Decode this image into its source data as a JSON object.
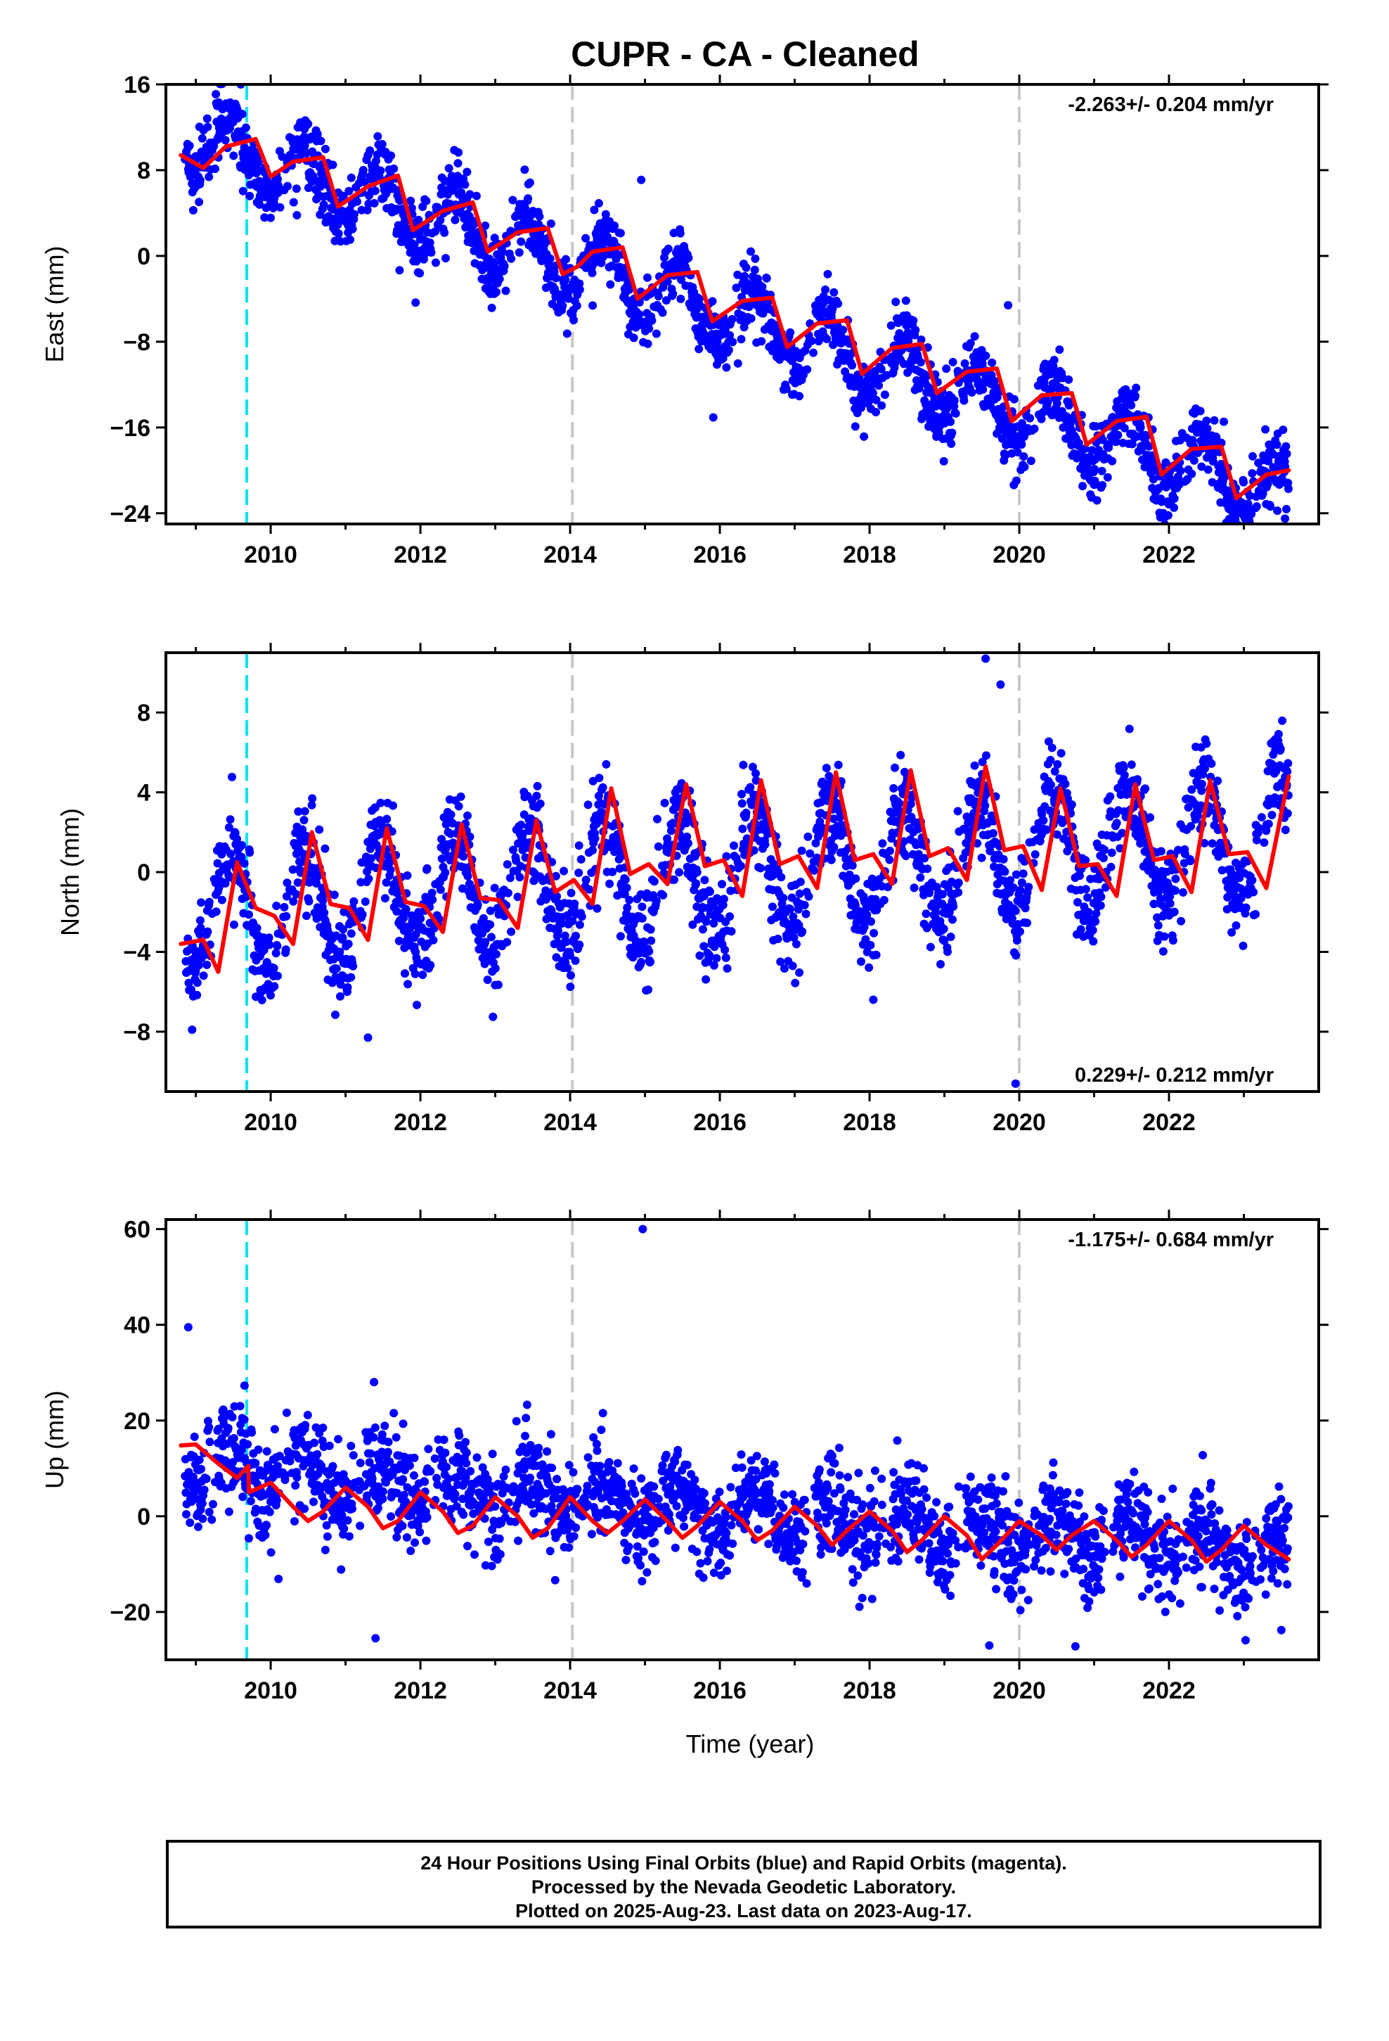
{
  "title": "CUPR  - CA - Cleaned",
  "colors": {
    "points": "#0000ff",
    "fit": "#ff0000",
    "equipment_change": "#00e5ee",
    "other_event": "#c8c8c8",
    "frame": "#000000"
  },
  "xaxis": {
    "label": "Time (year)",
    "range": [
      2008.6,
      2024.0
    ],
    "ticks": [
      2010,
      2012,
      2014,
      2016,
      2018,
      2020,
      2022
    ],
    "tick_labels": [
      "2010",
      "2012",
      "2014",
      "2016",
      "2018",
      "2020",
      "2022"
    ]
  },
  "event_lines": [
    {
      "year": 2009.68,
      "color": "#00e5ee"
    },
    {
      "year": 2014.03,
      "color": "#c8c8c8"
    },
    {
      "year": 2020.0,
      "color": "#c8c8c8"
    }
  ],
  "chart_data": [
    {
      "type": "scatter",
      "ylabel": "East (mm)",
      "ylim": [
        -25,
        16
      ],
      "yticks": [
        16,
        8,
        0,
        -8,
        -16,
        -24
      ],
      "ytick_labels": [
        "16",
        "8",
        "0",
        "−8",
        "−16",
        "−24"
      ],
      "rate_text": "-2.263+/- 0.204 mm/yr",
      "rate_corner": "top-right",
      "fit_x": [
        2008.8,
        2009.1,
        2009.4,
        2009.8,
        2010.0,
        2010.3,
        2010.7,
        2010.9,
        2011.3,
        2011.7,
        2011.9,
        2012.3,
        2012.7,
        2012.9,
        2013.3,
        2013.7,
        2013.9,
        2014.1,
        2014.3,
        2014.7,
        2014.9,
        2015.3,
        2015.7,
        2015.9,
        2016.3,
        2016.7,
        2016.9,
        2017.3,
        2017.7,
        2017.9,
        2018.3,
        2018.7,
        2018.9,
        2019.3,
        2019.7,
        2019.9,
        2020.3,
        2020.7,
        2020.9,
        2021.3,
        2021.7,
        2021.9,
        2022.3,
        2022.7,
        2022.9,
        2023.3,
        2023.6
      ],
      "fit_y": [
        9.4,
        8.2,
        10.2,
        10.9,
        7.4,
        8.8,
        9.2,
        4.6,
        6.5,
        7.5,
        2.4,
        4.2,
        5.0,
        0.4,
        2.2,
        2.6,
        -1.7,
        -1.0,
        0.4,
        0.8,
        -4.0,
        -1.8,
        -1.5,
        -6.1,
        -4.2,
        -3.9,
        -8.5,
        -6.3,
        -6.0,
        -11.0,
        -8.6,
        -8.2,
        -12.8,
        -10.8,
        -10.5,
        -15.4,
        -13.0,
        -12.8,
        -17.6,
        -15.4,
        -15.0,
        -20.4,
        -18.0,
        -17.8,
        -22.6,
        -20.4,
        -20.0
      ],
      "trend_x": [
        2008.85,
        2023.6
      ],
      "trend_y": [
        11.0,
        -22.5
      ],
      "seasonal_amp": 3.0,
      "noise": 1.6,
      "outliers": [
        [
          2009.6,
          16.0
        ],
        [
          2019.85,
          -4.6
        ],
        [
          2023.55,
          -24.5
        ],
        [
          2014.95,
          7.1
        ],
        [
          2010.35,
          3.8
        ]
      ]
    },
    {
      "type": "scatter",
      "ylabel": "North (mm)",
      "ylim": [
        -11,
        11
      ],
      "yticks": [
        8,
        4,
        0,
        -4,
        -8
      ],
      "ytick_labels": [
        "8",
        "4",
        "0",
        "−4",
        "−8"
      ],
      "rate_text": "0.229+/- 0.212 mm/yr",
      "rate_corner": "bottom-right",
      "fit_x": [
        2008.8,
        2009.1,
        2009.3,
        2009.55,
        2009.8,
        2010.05,
        2010.3,
        2010.55,
        2010.8,
        2011.05,
        2011.3,
        2011.55,
        2011.8,
        2012.05,
        2012.3,
        2012.55,
        2012.8,
        2013.05,
        2013.3,
        2013.55,
        2013.8,
        2014.05,
        2014.3,
        2014.55,
        2014.8,
        2015.05,
        2015.3,
        2015.55,
        2015.8,
        2016.05,
        2016.3,
        2016.55,
        2016.8,
        2017.05,
        2017.3,
        2017.55,
        2017.8,
        2018.05,
        2018.3,
        2018.55,
        2018.8,
        2019.05,
        2019.3,
        2019.55,
        2019.8,
        2020.05,
        2020.3,
        2020.55,
        2020.8,
        2021.05,
        2021.3,
        2021.55,
        2021.8,
        2022.05,
        2022.3,
        2022.55,
        2022.8,
        2023.05,
        2023.3,
        2023.6
      ],
      "fit_y": [
        -3.6,
        -3.4,
        -5.0,
        0.5,
        -1.8,
        -2.2,
        -3.6,
        2.0,
        -1.6,
        -1.8,
        -3.4,
        2.2,
        -1.5,
        -1.7,
        -3.0,
        2.4,
        -1.3,
        -1.4,
        -2.8,
        2.6,
        -1.0,
        -0.4,
        -1.6,
        4.2,
        -0.1,
        0.4,
        -0.6,
        4.4,
        0.3,
        0.6,
        -1.2,
        4.6,
        0.4,
        0.8,
        -0.8,
        5.0,
        0.6,
        0.9,
        -0.6,
        5.1,
        0.8,
        1.2,
        -0.4,
        5.3,
        1.1,
        1.3,
        -0.9,
        4.2,
        0.3,
        0.4,
        -1.2,
        4.4,
        0.6,
        0.8,
        -1.0,
        4.6,
        0.9,
        1.0,
        -0.8,
        4.8
      ],
      "trend_x": [
        2008.85,
        2023.6
      ],
      "trend_y": [
        -2.0,
        1.8
      ],
      "seasonal_amp": 3.0,
      "noise": 1.2,
      "outliers": [
        [
          2019.55,
          10.7
        ],
        [
          2019.95,
          -10.6
        ],
        [
          2019.75,
          9.4
        ],
        [
          2018.05,
          -6.4
        ],
        [
          2011.3,
          -8.3
        ],
        [
          2008.95,
          -7.9
        ]
      ]
    },
    {
      "type": "scatter",
      "ylabel": "Up (mm)",
      "ylim": [
        -30,
        62
      ],
      "yticks": [
        60,
        40,
        20,
        0,
        -20
      ],
      "ytick_labels": [
        "60",
        "40",
        "20",
        "0",
        "−20"
      ],
      "rate_text": "-1.175+/- 0.684 mm/yr",
      "rate_corner": "top-right",
      "fit_x": [
        2008.8,
        2009.0,
        2009.3,
        2009.55,
        2009.7,
        2009.71,
        2010.0,
        2010.3,
        2010.5,
        2010.7,
        2011.0,
        2011.3,
        2011.5,
        2011.7,
        2012.0,
        2012.3,
        2012.5,
        2012.7,
        2013.0,
        2013.3,
        2013.5,
        2013.7,
        2014.0,
        2014.3,
        2014.5,
        2014.7,
        2015.0,
        2015.3,
        2015.5,
        2015.7,
        2016.0,
        2016.3,
        2016.5,
        2016.7,
        2017.0,
        2017.3,
        2017.5,
        2017.7,
        2018.0,
        2018.3,
        2018.5,
        2018.7,
        2019.0,
        2019.3,
        2019.5,
        2019.7,
        2020.0,
        2020.3,
        2020.5,
        2020.7,
        2021.0,
        2021.3,
        2021.5,
        2021.7,
        2022.0,
        2022.3,
        2022.5,
        2022.7,
        2023.0,
        2023.3,
        2023.6
      ],
      "fit_y": [
        14.8,
        15.0,
        11.0,
        8.0,
        10.5,
        5.0,
        7.0,
        2.0,
        -1.0,
        1.0,
        6.0,
        2.0,
        -2.5,
        -1.0,
        5.0,
        1.0,
        -3.5,
        -2.0,
        4.0,
        0.0,
        -4.5,
        -2.5,
        4.0,
        -1.0,
        -3.5,
        -1.0,
        3.5,
        -1.0,
        -4.5,
        -2.0,
        3.0,
        -1.0,
        -5.0,
        -3.0,
        2.0,
        -2.0,
        -6.0,
        -3.0,
        1.0,
        -3.0,
        -7.5,
        -5.0,
        0.0,
        -4.0,
        -9.0,
        -6.0,
        -1.0,
        -4.0,
        -7.0,
        -4.0,
        -1.0,
        -5.0,
        -8.5,
        -6.0,
        -1.0,
        -5.0,
        -9.5,
        -7.0,
        -2.0,
        -6.0,
        -9.0
      ],
      "trend_x": [
        2008.85,
        2023.6
      ],
      "trend_y": [
        10.0,
        -8.0
      ],
      "seasonal_amp": 4.0,
      "noise": 5.0,
      "outliers": [
        [
          2014.97,
          60.0
        ],
        [
          2008.9,
          39.5
        ],
        [
          2009.65,
          27.3
        ],
        [
          2011.4,
          -25.5
        ],
        [
          2019.6,
          -27.0
        ],
        [
          2020.75,
          -27.2
        ],
        [
          2023.5,
          -23.8
        ]
      ]
    }
  ],
  "footer": {
    "line1": "24 Hour Positions Using Final Orbits (blue) and Rapid Orbits (magenta).",
    "line2": "Processed by the Nevada Geodetic Laboratory.",
    "line3": "Plotted on 2025-Aug-23. Last data on 2023-Aug-17."
  }
}
